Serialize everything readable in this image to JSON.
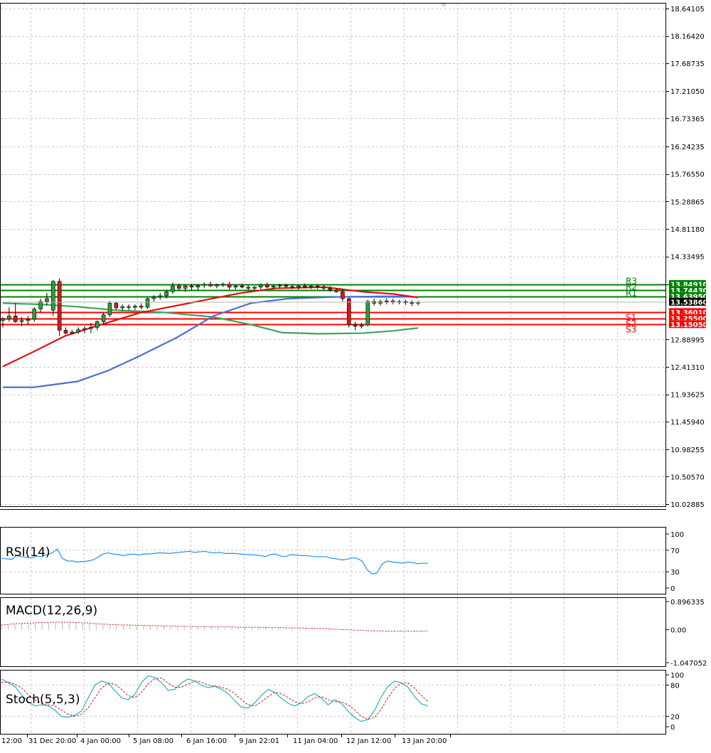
{
  "chart_data": [
    {
      "type": "candlestick",
      "y_ticks": [
        "18.64105",
        "18.16420",
        "17.68735",
        "17.21050",
        "16.73365",
        "16.24235",
        "15.76550",
        "15.28865",
        "14.81180",
        "14.33495",
        "13.84910",
        "12.88995",
        "12.41310",
        "11.93625",
        "11.45940",
        "10.98255",
        "10.50570",
        "10.02885"
      ],
      "ylim": [
        10.02885,
        18.64105
      ],
      "x_labels": [
        "12:00",
        "31 Dec 20:00",
        "4 Jan 00:00",
        "5 Jan 08:00",
        "6 Jan 16:00",
        "9 Jan 22:01",
        "11 Jan 04:00",
        "12 Jan 12:00",
        "13 Jan 20:00"
      ],
      "current_price": "13.53860",
      "levels": [
        {
          "name": "R3",
          "price": 13.8491,
          "price_label": "13.84910",
          "color": "#008000"
        },
        {
          "name": "R2",
          "price": 13.7443,
          "price_label": "13.74430",
          "color": "#008000"
        },
        {
          "name": "R1",
          "price": 13.6395,
          "price_label": "13.63950",
          "color": "#008000"
        },
        {
          "name": "S1",
          "price": 13.3601,
          "price_label": "13.36010",
          "color": "#ff0000"
        },
        {
          "name": "S2",
          "price": 13.255,
          "price_label": "13.25500",
          "color": "#ff0000"
        },
        {
          "name": "S3",
          "price": 13.1505,
          "price_label": "13.15050",
          "color": "#ff0000"
        }
      ],
      "candles": [
        [
          13.22,
          13.28,
          13.1,
          13.25
        ],
        [
          13.25,
          13.45,
          13.2,
          13.3
        ],
        [
          13.3,
          13.52,
          13.18,
          13.2
        ],
        [
          13.2,
          13.28,
          13.12,
          13.22
        ],
        [
          13.22,
          13.3,
          13.15,
          13.24
        ],
        [
          13.24,
          13.45,
          13.2,
          13.42
        ],
        [
          13.42,
          13.6,
          13.36,
          13.55
        ],
        [
          13.55,
          13.7,
          13.48,
          13.6
        ],
        [
          13.4,
          13.92,
          13.3,
          13.9
        ],
        [
          13.9,
          13.95,
          12.95,
          13.05
        ],
        [
          13.05,
          13.1,
          12.98,
          13.0
        ],
        [
          13.0,
          13.06,
          12.98,
          13.02
        ],
        [
          13.02,
          13.1,
          12.99,
          13.06
        ],
        [
          13.06,
          13.12,
          13.0,
          13.08
        ],
        [
          13.08,
          13.18,
          13.0,
          13.1
        ],
        [
          13.1,
          13.22,
          13.05,
          13.2
        ],
        [
          13.2,
          13.36,
          13.15,
          13.32
        ],
        [
          13.32,
          13.56,
          13.28,
          13.52
        ],
        [
          13.52,
          13.55,
          13.4,
          13.44
        ],
        [
          13.44,
          13.5,
          13.38,
          13.46
        ],
        [
          13.46,
          13.5,
          13.4,
          13.45
        ],
        [
          13.45,
          13.5,
          13.4,
          13.47
        ],
        [
          13.47,
          13.52,
          13.42,
          13.45
        ],
        [
          13.45,
          13.62,
          13.42,
          13.6
        ],
        [
          13.6,
          13.66,
          13.55,
          13.63
        ],
        [
          13.63,
          13.7,
          13.58,
          13.65
        ],
        [
          13.65,
          13.75,
          13.6,
          13.72
        ],
        [
          13.72,
          13.88,
          13.68,
          13.82
        ],
        [
          13.82,
          13.86,
          13.74,
          13.78
        ],
        [
          13.78,
          13.85,
          13.72,
          13.82
        ],
        [
          13.82,
          13.86,
          13.75,
          13.8
        ],
        [
          13.8,
          13.85,
          13.74,
          13.83
        ],
        [
          13.83,
          13.88,
          13.78,
          13.85
        ],
        [
          13.85,
          13.9,
          13.8,
          13.82
        ],
        [
          13.82,
          13.86,
          13.78,
          13.84
        ],
        [
          13.84,
          13.88,
          13.8,
          13.85
        ],
        [
          13.85,
          13.89,
          13.76,
          13.8
        ],
        [
          13.8,
          13.84,
          13.76,
          13.82
        ],
        [
          13.82,
          13.86,
          13.78,
          13.8
        ],
        [
          13.8,
          13.84,
          13.74,
          13.78
        ],
        [
          13.78,
          13.82,
          13.74,
          13.8
        ],
        [
          13.8,
          13.86,
          13.76,
          13.84
        ],
        [
          13.84,
          13.88,
          13.78,
          13.8
        ],
        [
          13.8,
          13.84,
          13.76,
          13.82
        ],
        [
          13.82,
          13.86,
          13.78,
          13.83
        ],
        [
          13.83,
          13.86,
          13.79,
          13.81
        ],
        [
          13.81,
          13.85,
          13.77,
          13.8
        ],
        [
          13.8,
          13.84,
          13.76,
          13.82
        ],
        [
          13.82,
          13.86,
          13.78,
          13.8
        ],
        [
          13.8,
          13.84,
          13.77,
          13.82
        ],
        [
          13.82,
          13.85,
          13.77,
          13.8
        ],
        [
          13.8,
          13.84,
          13.74,
          13.78
        ],
        [
          13.78,
          13.82,
          13.72,
          13.75
        ],
        [
          13.75,
          13.78,
          13.7,
          13.72
        ],
        [
          13.72,
          13.76,
          13.55,
          13.6
        ],
        [
          13.6,
          13.62,
          13.1,
          13.15
        ],
        [
          13.15,
          13.2,
          13.05,
          13.12
        ],
        [
          13.12,
          13.18,
          13.08,
          13.14
        ],
        [
          13.14,
          13.58,
          13.12,
          13.55
        ],
        [
          13.55,
          13.6,
          13.48,
          13.52
        ],
        [
          13.52,
          13.58,
          13.48,
          13.55
        ],
        [
          13.55,
          13.6,
          13.5,
          13.56
        ],
        [
          13.56,
          13.6,
          13.5,
          13.54
        ],
        [
          13.54,
          13.58,
          13.5,
          13.55
        ],
        [
          13.55,
          13.58,
          13.49,
          13.53
        ],
        [
          13.53,
          13.57,
          13.47,
          13.52
        ],
        [
          13.52,
          13.56,
          13.48,
          13.54
        ]
      ],
      "ma_fast_red": [
        [
          0,
          12.42
        ],
        [
          5,
          12.68
        ],
        [
          10,
          12.95
        ],
        [
          15,
          13.12
        ],
        [
          22,
          13.35
        ],
        [
          30,
          13.52
        ],
        [
          38,
          13.69
        ],
        [
          44,
          13.78
        ],
        [
          52,
          13.8
        ],
        [
          58,
          13.72
        ],
        [
          63,
          13.68
        ],
        [
          67,
          13.62
        ]
      ],
      "ma_mid_blue": [
        [
          0,
          12.06
        ],
        [
          5,
          12.06
        ],
        [
          12,
          12.16
        ],
        [
          17,
          12.35
        ],
        [
          22,
          12.6
        ],
        [
          28,
          12.92
        ],
        [
          34,
          13.3
        ],
        [
          40,
          13.52
        ],
        [
          46,
          13.6
        ],
        [
          54,
          13.63
        ],
        [
          62,
          13.64
        ],
        [
          67,
          13.63
        ]
      ],
      "ma_slow_green": [
        [
          0,
          13.52
        ],
        [
          6,
          13.5
        ],
        [
          12,
          13.46
        ],
        [
          18,
          13.4
        ],
        [
          26,
          13.36
        ],
        [
          34,
          13.28
        ],
        [
          40,
          13.15
        ],
        [
          45,
          13.01
        ],
        [
          51,
          12.99
        ],
        [
          58,
          13.0
        ],
        [
          63,
          13.04
        ],
        [
          67,
          13.09
        ]
      ]
    },
    {
      "type": "line",
      "title": "RSI(14)",
      "y_ticks": [
        "100",
        "70",
        "30",
        "0"
      ],
      "ylim": [
        0,
        100
      ],
      "values": [
        55,
        54,
        53,
        60,
        58,
        57,
        56,
        59,
        58,
        62,
        65,
        72,
        55,
        50,
        50,
        48,
        49,
        50,
        52,
        57,
        63,
        65,
        63,
        62,
        60,
        62,
        63,
        61,
        63,
        63,
        64,
        65,
        65,
        64,
        65,
        66,
        67,
        68,
        66,
        67,
        68,
        66,
        65,
        66,
        64,
        64,
        64,
        63,
        62,
        62,
        61,
        60,
        58,
        62,
        63,
        59,
        58,
        62,
        61,
        60,
        60,
        59,
        58,
        58,
        58,
        55,
        54,
        52,
        53,
        56,
        55,
        50,
        34,
        26,
        28,
        45,
        50,
        48,
        47,
        46,
        48,
        47,
        45,
        46,
        46
      ]
    },
    {
      "type": "bar",
      "title": "MACD(12,26,9)",
      "y_ticks": [
        "0.896335",
        "0.00",
        "-1.047052"
      ],
      "ylim": [
        -1.047052,
        0.896335
      ],
      "histogram": [
        0.16,
        0.17,
        0.18,
        0.19,
        0.2,
        0.21,
        0.22,
        0.22,
        0.23,
        0.25,
        0.24,
        0.23,
        0.21,
        0.2,
        0.18,
        0.17,
        0.16,
        0.15,
        0.15,
        0.14,
        0.13,
        0.13,
        0.12,
        0.12,
        0.11,
        0.11,
        0.1,
        0.1,
        0.1,
        0.09,
        0.09,
        0.09,
        0.09,
        0.08,
        0.08,
        0.08,
        0.08,
        0.07,
        0.07,
        0.07,
        0.06,
        0.06,
        0.06,
        0.05,
        0.05,
        0.04,
        0.04,
        0.03,
        0.02,
        0.01,
        0.0,
        -0.01,
        -0.02,
        -0.03,
        -0.04,
        -0.05,
        -0.05,
        -0.05,
        -0.05,
        -0.05,
        -0.05,
        -0.05,
        -0.04,
        -0.04
      ],
      "signal": [
        0.15,
        0.17,
        0.19,
        0.2,
        0.21,
        0.22,
        0.23,
        0.23,
        0.24,
        0.24,
        0.24,
        0.23,
        0.22,
        0.21,
        0.19,
        0.18,
        0.17,
        0.16,
        0.15,
        0.15,
        0.14,
        0.14,
        0.13,
        0.13,
        0.12,
        0.12,
        0.11,
        0.11,
        0.1,
        0.1,
        0.1,
        0.09,
        0.09,
        0.09,
        0.09,
        0.08,
        0.08,
        0.08,
        0.08,
        0.07,
        0.07,
        0.07,
        0.06,
        0.06,
        0.06,
        0.05,
        0.05,
        0.04,
        0.03,
        0.02,
        0.01,
        0.0,
        -0.01,
        -0.02,
        -0.03,
        -0.04,
        -0.04,
        -0.05,
        -0.05,
        -0.05,
        -0.05,
        -0.05,
        -0.05,
        -0.04
      ]
    },
    {
      "type": "line",
      "title": "Stoch(5,5,3)",
      "y_ticks": [
        "100",
        "80",
        "20",
        "0"
      ],
      "ylim": [
        0,
        100
      ],
      "main": [
        92,
        85,
        78,
        62,
        48,
        40,
        42,
        40,
        32,
        20,
        18,
        22,
        30,
        55,
        80,
        88,
        84,
        70,
        56,
        52,
        62,
        85,
        98,
        95,
        85,
        70,
        72,
        84,
        92,
        88,
        80,
        75,
        78,
        72,
        64,
        50,
        38,
        36,
        46,
        60,
        72,
        66,
        55,
        45,
        40,
        46,
        58,
        64,
        55,
        42,
        52,
        45,
        30,
        18,
        10,
        14,
        32,
        58,
        78,
        88,
        84,
        76,
        58,
        44,
        40
      ],
      "signal": [
        85,
        86,
        82,
        75,
        62,
        52,
        45,
        42,
        40,
        32,
        24,
        20,
        24,
        36,
        55,
        74,
        84,
        82,
        72,
        60,
        56,
        66,
        82,
        92,
        94,
        84,
        76,
        76,
        82,
        88,
        86,
        80,
        78,
        76,
        72,
        64,
        52,
        42,
        40,
        48,
        58,
        66,
        64,
        56,
        48,
        44,
        48,
        56,
        58,
        52,
        48,
        48,
        42,
        32,
        20,
        14,
        18,
        34,
        56,
        74,
        84,
        84,
        74,
        60,
        48
      ]
    }
  ]
}
